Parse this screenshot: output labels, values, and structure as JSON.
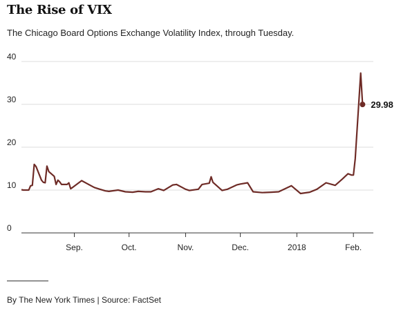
{
  "header": {
    "title": "The Rise of VIX",
    "subtitle": "The Chicago Board Options Exchange Volatility Index, through Tuesday."
  },
  "footer": {
    "credit": "By The New York Times | Source: FactSet"
  },
  "colors": {
    "line": "#6e2b26",
    "grid": "#dddddd",
    "axis": "#333333"
  },
  "chart_data": {
    "type": "line",
    "title": "The Rise of VIX",
    "subtitle": "The Chicago Board Options Exchange Volatility Index, through Tuesday.",
    "xlabel": "",
    "ylabel": "",
    "ylim": [
      0,
      40
    ],
    "yticks": [
      0,
      10,
      20,
      30,
      40
    ],
    "xlim": [
      "2017-08-03",
      "2018-02-07"
    ],
    "xticks": [
      {
        "date": "2017-09-01",
        "label": "Sep."
      },
      {
        "date": "2017-10-01",
        "label": "Oct."
      },
      {
        "date": "2017-11-01",
        "label": "Nov."
      },
      {
        "date": "2017-12-01",
        "label": "Dec."
      },
      {
        "date": "2018-01-01",
        "label": "2018"
      },
      {
        "date": "2018-02-01",
        "label": "Feb."
      }
    ],
    "grid": "horizontal",
    "end_value_label": "29.98",
    "series": [
      {
        "name": "VIX",
        "x": [
          "2017-08-03",
          "2017-08-04",
          "2017-08-07",
          "2017-08-08",
          "2017-08-09",
          "2017-08-10",
          "2017-08-11",
          "2017-08-14",
          "2017-08-15",
          "2017-08-16",
          "2017-08-17",
          "2017-08-18",
          "2017-08-21",
          "2017-08-22",
          "2017-08-23",
          "2017-08-24",
          "2017-08-25",
          "2017-08-28",
          "2017-08-29",
          "2017-08-30",
          "2017-08-31",
          "2017-09-05",
          "2017-09-08",
          "2017-09-12",
          "2017-09-15",
          "2017-09-18",
          "2017-09-20",
          "2017-09-25",
          "2017-09-29",
          "2017-10-03",
          "2017-10-06",
          "2017-10-10",
          "2017-10-13",
          "2017-10-17",
          "2017-10-20",
          "2017-10-25",
          "2017-10-27",
          "2017-11-01",
          "2017-11-03",
          "2017-11-08",
          "2017-11-10",
          "2017-11-14",
          "2017-11-15",
          "2017-11-16",
          "2017-11-21",
          "2017-11-24",
          "2017-11-29",
          "2017-12-01",
          "2017-12-05",
          "2017-12-08",
          "2017-12-13",
          "2017-12-18",
          "2017-12-22",
          "2017-12-27",
          "2017-12-29",
          "2018-01-03",
          "2018-01-08",
          "2018-01-12",
          "2018-01-17",
          "2018-01-22",
          "2018-01-26",
          "2018-01-29",
          "2018-01-31",
          "2018-02-01",
          "2018-02-02",
          "2018-02-05",
          "2018-02-06"
        ],
        "values": [
          10.1,
          10.0,
          10.0,
          11.0,
          11.1,
          16.0,
          15.5,
          12.3,
          11.8,
          11.7,
          15.6,
          14.3,
          13.2,
          11.3,
          12.3,
          11.9,
          11.3,
          11.3,
          11.7,
          10.3,
          10.6,
          12.2,
          11.5,
          10.6,
          10.2,
          9.8,
          9.7,
          10.0,
          9.6,
          9.5,
          9.7,
          9.6,
          9.6,
          10.3,
          9.9,
          11.2,
          11.3,
          10.2,
          9.9,
          10.2,
          11.3,
          11.6,
          13.1,
          11.8,
          9.9,
          10.2,
          11.2,
          11.4,
          11.7,
          9.6,
          9.4,
          9.5,
          9.6,
          10.6,
          11.0,
          9.2,
          9.5,
          10.2,
          11.7,
          11.1,
          12.6,
          13.8,
          13.5,
          13.5,
          17.3,
          37.3,
          29.98
        ]
      }
    ]
  }
}
